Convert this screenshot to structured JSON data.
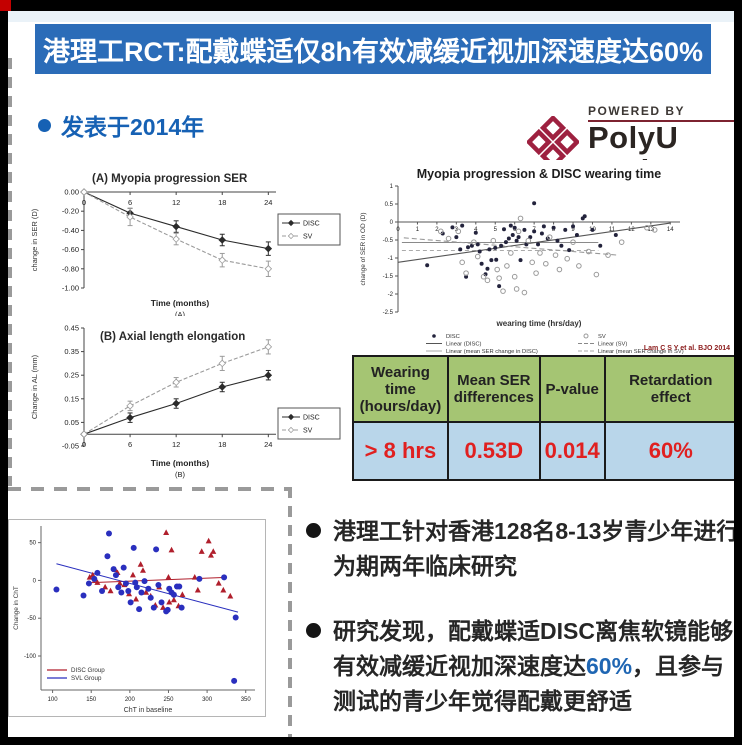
{
  "banner": {
    "title": "港理工RCT:配戴蝶适仅8h有效减缓近视加深速度达60%"
  },
  "published_line": {
    "text": "发表于2014年"
  },
  "logo": {
    "powered_by": "POWERED BY",
    "brand": "PolyU Tech"
  },
  "table": {
    "headers": [
      "Wearing time (hours/day)",
      "Mean SER differences",
      "P-value",
      "Retardation effect"
    ],
    "row": [
      "> 8 hrs",
      "0.53D",
      "0.014",
      "60%"
    ]
  },
  "bullets": [
    {
      "pre": "港理工针对香港128名8-13岁青少年进行为期两年临床研究",
      "highlight": "",
      "post": ""
    },
    {
      "pre": "研究发现，配戴蝶适DISC离焦软镜能够有效减缓近视加深速度达",
      "highlight": "60%",
      "post": "，且参与测试的青少年觉得配戴更舒适"
    }
  ],
  "colors": {
    "banner_bg": "#2b6cb8",
    "accent_blue": "#1661b4",
    "logo_red": "#9e2140",
    "table_header_bg": "#a5c573",
    "table_row_bg": "#b9d6ea",
    "table_value_red": "#e02020",
    "disc_red": "#b01f2c",
    "svl_blue": "#2a2fbe"
  },
  "chart_data": [
    {
      "id": "chartA",
      "type": "line",
      "title": "(A) Myopia progression SER",
      "xlabel": "Time (months)",
      "sublabel": "(A)",
      "ylabel": "change in SER (D)",
      "x": [
        0,
        6,
        12,
        18,
        24
      ],
      "xticks": [
        0,
        6,
        12,
        18,
        24
      ],
      "xlim": [
        0,
        25
      ],
      "ylim": [
        -1.0,
        0.0
      ],
      "yticks": [
        0.0,
        -0.2,
        -0.4,
        -0.6,
        -0.8,
        -1.0
      ],
      "axis_y": 0,
      "series": [
        {
          "name": "DISC",
          "color": "#2b2b2b",
          "open": false,
          "values": [
            0,
            -0.22,
            -0.36,
            -0.5,
            -0.59
          ],
          "err": [
            0,
            0.05,
            0.06,
            0.06,
            0.07
          ]
        },
        {
          "name": "SV",
          "color": "#9b9b9b",
          "open": true,
          "values": [
            0,
            -0.26,
            -0.49,
            -0.71,
            -0.8
          ],
          "err": [
            0,
            0.09,
            0.06,
            0.07,
            0.08
          ]
        }
      ]
    },
    {
      "id": "chartB",
      "type": "line",
      "title": "(B) Axial length elongation",
      "xlabel": "Time (months)",
      "sublabel": "(B)",
      "ylabel": "Change in AL (mm)",
      "x": [
        0,
        6,
        12,
        18,
        24
      ],
      "xticks": [
        0,
        6,
        12,
        18,
        24
      ],
      "xlim": [
        0,
        25
      ],
      "ylim": [
        -0.05,
        0.45
      ],
      "yticks": [
        0.45,
        0.35,
        0.25,
        0.15,
        0.05,
        -0.05
      ],
      "axis_y": 0,
      "series": [
        {
          "name": "DISC",
          "color": "#2b2b2b",
          "open": false,
          "values": [
            0,
            0.07,
            0.13,
            0.2,
            0.25
          ],
          "err": [
            0,
            0.02,
            0.02,
            0.02,
            0.02
          ]
        },
        {
          "name": "SV",
          "color": "#9b9b9b",
          "open": true,
          "values": [
            0,
            0.12,
            0.22,
            0.3,
            0.37
          ],
          "err": [
            0,
            0.02,
            0.02,
            0.03,
            0.03
          ]
        }
      ]
    },
    {
      "id": "scatterWearing",
      "type": "scatter",
      "title": "Myopia progression & DISC wearing time",
      "xlabel": "wearing time (hrs/day)",
      "ylabel": "change of SER in OD (D)",
      "xlim": [
        0,
        14.5
      ],
      "ylim": [
        -2.5,
        1
      ],
      "xticks": [
        0,
        1,
        2,
        3,
        4,
        5,
        6,
        7,
        8,
        9,
        10,
        11,
        12,
        13,
        14
      ],
      "yticks": [
        1,
        0.5,
        0,
        -0.5,
        -1,
        -1.5,
        -2,
        -2.5
      ],
      "series": [
        {
          "name": "DISC",
          "marker": "filled",
          "points": [
            [
              1.5,
              -1.2
            ],
            [
              2.3,
              -0.32
            ],
            [
              2.8,
              -0.15
            ],
            [
              3.0,
              -0.42
            ],
            [
              3.2,
              -0.76
            ],
            [
              3.3,
              -0.1
            ],
            [
              3.5,
              -1.52
            ],
            [
              3.6,
              -0.7
            ],
            [
              3.8,
              -0.66
            ],
            [
              4.0,
              -0.3
            ],
            [
              4.1,
              -0.62
            ],
            [
              4.2,
              -0.82
            ],
            [
              4.3,
              -1.16
            ],
            [
              4.5,
              -1.45
            ],
            [
              4.6,
              -1.3
            ],
            [
              4.7,
              -0.76
            ],
            [
              4.8,
              -1.06
            ],
            [
              5.0,
              -0.72
            ],
            [
              5.05,
              -1.05
            ],
            [
              5.2,
              -1.78
            ],
            [
              5.3,
              -0.66
            ],
            [
              5.45,
              -0.2
            ],
            [
              5.55,
              -0.56
            ],
            [
              5.7,
              -0.46
            ],
            [
              5.8,
              -0.1
            ],
            [
              5.9,
              -0.36
            ],
            [
              6.0,
              -0.16
            ],
            [
              6.1,
              -0.52
            ],
            [
              6.2,
              -0.42
            ],
            [
              6.3,
              -1.06
            ],
            [
              6.5,
              -0.22
            ],
            [
              6.6,
              -0.62
            ],
            [
              6.8,
              -0.42
            ],
            [
              7.0,
              -0.26
            ],
            [
              7.0,
              0.52
            ],
            [
              7.2,
              -0.62
            ],
            [
              7.4,
              -0.32
            ],
            [
              7.5,
              -0.12
            ],
            [
              7.7,
              -0.46
            ],
            [
              8.0,
              -0.16
            ],
            [
              8.2,
              -0.52
            ],
            [
              8.4,
              -0.66
            ],
            [
              8.6,
              -0.22
            ],
            [
              8.8,
              -0.78
            ],
            [
              9.0,
              -0.12
            ],
            [
              9.2,
              -0.36
            ],
            [
              9.5,
              0.1
            ],
            [
              9.6,
              0.16
            ],
            [
              10.0,
              -0.22
            ],
            [
              10.4,
              -0.66
            ],
            [
              11.2,
              -0.36
            ]
          ]
        },
        {
          "name": "SV",
          "marker": "open",
          "points": [
            [
              2.2,
              -0.26
            ],
            [
              2.6,
              -0.46
            ],
            [
              3.1,
              -0.26
            ],
            [
              3.3,
              -1.12
            ],
            [
              3.5,
              -1.42
            ],
            [
              3.9,
              -0.56
            ],
            [
              4.1,
              -0.96
            ],
            [
              4.4,
              -1.52
            ],
            [
              4.6,
              -1.62
            ],
            [
              4.9,
              -0.52
            ],
            [
              5.1,
              -1.32
            ],
            [
              5.2,
              -1.56
            ],
            [
              5.4,
              -1.92
            ],
            [
              5.6,
              -1.22
            ],
            [
              5.8,
              -0.86
            ],
            [
              6.0,
              -1.52
            ],
            [
              6.1,
              -1.86
            ],
            [
              6.2,
              -0.26
            ],
            [
              6.3,
              0.1
            ],
            [
              6.5,
              -1.96
            ],
            [
              6.7,
              -0.52
            ],
            [
              6.9,
              -1.12
            ],
            [
              7.1,
              -1.42
            ],
            [
              7.3,
              -0.86
            ],
            [
              7.6,
              -1.16
            ],
            [
              7.8,
              -0.42
            ],
            [
              8.1,
              -0.92
            ],
            [
              8.3,
              -1.32
            ],
            [
              8.7,
              -1.02
            ],
            [
              9.0,
              -0.56
            ],
            [
              9.3,
              -1.22
            ],
            [
              9.8,
              -0.82
            ],
            [
              10.2,
              -1.46
            ],
            [
              10.8,
              -0.92
            ],
            [
              11.5,
              -0.56
            ],
            [
              12.8,
              -0.16
            ],
            [
              13.2,
              -0.22
            ]
          ]
        }
      ],
      "trend_lines": [
        {
          "label": "Linear (DISC)",
          "x1": 0,
          "y1": -1.12,
          "x2": 14,
          "y2": -0.03,
          "dash": false,
          "color": "#555555"
        },
        {
          "label": "Linear (SV)",
          "x1": 0.3,
          "y1": -0.44,
          "x2": 11.3,
          "y2": -0.92,
          "dash": true,
          "color": "#999999"
        }
      ],
      "mean_lines": [
        {
          "label": "Linear (mean SER change in DISC)",
          "y": -0.57,
          "x1": 0.2,
          "x2": 10.3,
          "dash": false,
          "color": "#8a8a8a"
        },
        {
          "label": "Linear (mean SER change in SV)",
          "y": -0.79,
          "x1": 0.2,
          "x2": 10.3,
          "dash": true,
          "color": "#aaaaaa"
        }
      ],
      "legend": [
        {
          "label": "DISC",
          "type": "marker-filled"
        },
        {
          "label": "Linear (DISC)",
          "type": "line-solid-dark"
        },
        {
          "label": "Linear (mean SER change in DISC)",
          "type": "line-solid-gray"
        },
        {
          "label": "SV",
          "type": "marker-open"
        },
        {
          "label": "Linear (SV)",
          "type": "line-dash"
        },
        {
          "label": "Linear (mean SER change in SV)",
          "type": "line-dash-gray"
        }
      ],
      "citation": "Lam C S Y et al. BJO 2014"
    },
    {
      "id": "scatterChT",
      "type": "scatter",
      "xlabel": "ChT in baseline",
      "ylabel": "Change in ChT",
      "xlim": [
        85,
        362
      ],
      "ylim": [
        -145,
        72
      ],
      "xticks": [
        100,
        150,
        200,
        250,
        300,
        350
      ],
      "yticks": [
        50,
        0,
        -50,
        -100
      ],
      "series": [
        {
          "name": "DISC Group",
          "color": "#b01f2c",
          "marker": "triangle",
          "points": [
            [
              148,
              4
            ],
            [
              152,
              7
            ],
            [
              155,
              1
            ],
            [
              158,
              -3
            ],
            [
              168,
              -9
            ],
            [
              175,
              -14
            ],
            [
              181,
              14
            ],
            [
              184,
              10
            ],
            [
              187,
              -4
            ],
            [
              193,
              -6
            ],
            [
              199,
              -18
            ],
            [
              204,
              7
            ],
            [
              208,
              -25
            ],
            [
              214,
              21
            ],
            [
              217,
              13
            ],
            [
              221,
              -16
            ],
            [
              227,
              -21
            ],
            [
              233,
              -33
            ],
            [
              238,
              -9
            ],
            [
              243,
              -36
            ],
            [
              247,
              63
            ],
            [
              250,
              4
            ],
            [
              251,
              -29
            ],
            [
              254,
              40
            ],
            [
              257,
              -26
            ],
            [
              263,
              -34
            ],
            [
              268,
              -19
            ],
            [
              284,
              4
            ],
            [
              288,
              -13
            ],
            [
              293,
              38
            ],
            [
              302,
              52
            ],
            [
              305,
              33
            ],
            [
              308,
              38
            ],
            [
              315,
              -4
            ],
            [
              321,
              -13
            ],
            [
              330,
              -21
            ]
          ]
        },
        {
          "name": "SVL Group",
          "color": "#2a2fbe",
          "marker": "circle",
          "points": [
            [
              105,
              -12
            ],
            [
              140,
              -20
            ],
            [
              147,
              -4
            ],
            [
              154,
              2
            ],
            [
              158,
              10
            ],
            [
              164,
              -14
            ],
            [
              171,
              32
            ],
            [
              173,
              62
            ],
            [
              179,
              15
            ],
            [
              182,
              7
            ],
            [
              185,
              -9
            ],
            [
              189,
              -16
            ],
            [
              192,
              17
            ],
            [
              195,
              -4
            ],
            [
              198,
              -14
            ],
            [
              201,
              -29
            ],
            [
              205,
              43
            ],
            [
              207,
              -3
            ],
            [
              209,
              -9
            ],
            [
              212,
              -38
            ],
            [
              215,
              -16
            ],
            [
              219,
              -1
            ],
            [
              224,
              -11
            ],
            [
              227,
              -23
            ],
            [
              231,
              -36
            ],
            [
              234,
              41
            ],
            [
              237,
              -6
            ],
            [
              241,
              -29
            ],
            [
              247,
              -41
            ],
            [
              249,
              -39
            ],
            [
              251,
              -11
            ],
            [
              254,
              -16
            ],
            [
              257,
              -19
            ],
            [
              261,
              -8
            ],
            [
              264,
              -8
            ],
            [
              267,
              -36
            ],
            [
              290,
              2
            ],
            [
              322,
              4
            ],
            [
              337,
              -49
            ],
            [
              335,
              -133
            ]
          ]
        }
      ],
      "trend_lines": [
        {
          "color": "#b01f2c",
          "x1": 150,
          "y1": -3,
          "x2": 325,
          "y2": 4,
          "dash": false
        },
        {
          "color": "#2a2fbe",
          "x1": 105,
          "y1": 22,
          "x2": 340,
          "y2": -42,
          "dash": false
        }
      ]
    }
  ]
}
